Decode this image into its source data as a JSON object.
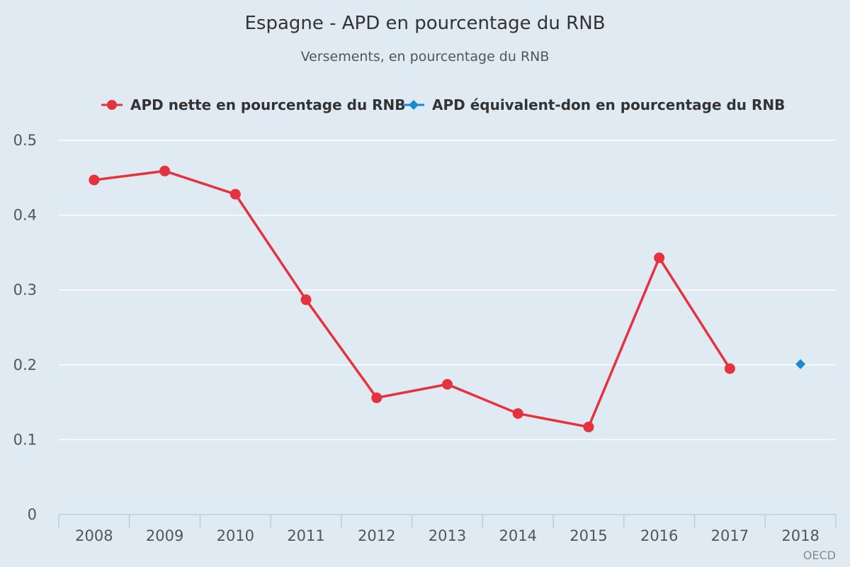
{
  "chart_data": {
    "type": "line",
    "title": "Espagne - APD en pourcentage du RNB",
    "subtitle": "Versements, en pourcentage du RNB",
    "xlabel": "",
    "ylabel": "",
    "categories": [
      "2008",
      "2009",
      "2010",
      "2011",
      "2012",
      "2013",
      "2014",
      "2015",
      "2016",
      "2017",
      "2018"
    ],
    "ylim": [
      0,
      0.5
    ],
    "yticks": [
      "0",
      "0.1",
      "0.2",
      "0.3",
      "0.4",
      "0.5"
    ],
    "grid": true,
    "legend_position": "top",
    "series": [
      {
        "name": "APD nette en pourcentage du RNB",
        "color": "#e5323f",
        "marker": "circle",
        "values": [
          0.447,
          0.459,
          0.428,
          0.287,
          0.156,
          0.174,
          0.135,
          0.117,
          0.343,
          0.195,
          null
        ]
      },
      {
        "name": "APD équivalent-don en pourcentage du RNB",
        "color": "#1a8ad4",
        "marker": "diamond",
        "values": [
          null,
          null,
          null,
          null,
          null,
          null,
          null,
          null,
          null,
          null,
          0.201
        ]
      }
    ]
  },
  "credit": "OECD"
}
